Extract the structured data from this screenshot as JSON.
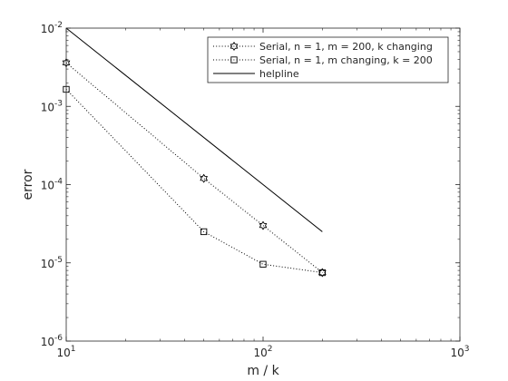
{
  "chart_data": {
    "type": "line",
    "xscale": "log",
    "yscale": "log",
    "xlim": [
      10,
      1000
    ],
    "ylim": [
      1e-06,
      0.01
    ],
    "xlabel": "m / k",
    "ylabel": "error",
    "x_ticks": [
      {
        "value": 10,
        "base": "10",
        "exp": "1"
      },
      {
        "value": 100,
        "base": "10",
        "exp": "2"
      },
      {
        "value": 1000,
        "base": "10",
        "exp": "3"
      }
    ],
    "y_ticks": [
      {
        "value": 1e-06,
        "base": "10",
        "exp": "-6"
      },
      {
        "value": 1e-05,
        "base": "10",
        "exp": "-5"
      },
      {
        "value": 0.0001,
        "base": "10",
        "exp": "-4"
      },
      {
        "value": 0.001,
        "base": "10",
        "exp": "-3"
      },
      {
        "value": 0.01,
        "base": "10",
        "exp": "-2"
      }
    ],
    "legend_position": "top-right",
    "grid": false,
    "series": [
      {
        "name": "Serial, n = 1, m = 200, k changing",
        "marker": "hexagram",
        "line_style": "dotted",
        "x": [
          10,
          50,
          100,
          200
        ],
        "y": [
          0.0036,
          0.00012,
          3e-05,
          7.5e-06
        ]
      },
      {
        "name": "Serial, n = 1, m changing, k = 200",
        "marker": "square",
        "line_style": "dotted",
        "x": [
          10,
          50,
          100,
          200
        ],
        "y": [
          0.00165,
          2.5e-05,
          9.6e-06,
          7.5e-06
        ]
      },
      {
        "name": "helpline",
        "marker": "none",
        "line_style": "solid",
        "x": [
          10,
          200
        ],
        "y": [
          0.01,
          2.5e-05
        ]
      }
    ]
  }
}
